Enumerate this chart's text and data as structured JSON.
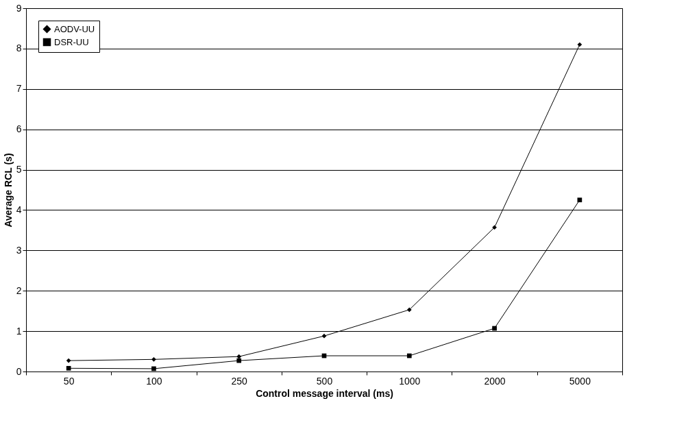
{
  "chart_data": {
    "type": "line",
    "xlabel": "Control message interval (ms)",
    "ylabel": "Average RCL (s)",
    "categories": [
      "50",
      "100",
      "250",
      "500",
      "1000",
      "2000",
      "5000"
    ],
    "series": [
      {
        "name": "AODV-UU",
        "color": "#000000",
        "marker": "diamond",
        "values": [
          0.27,
          0.3,
          0.37,
          0.88,
          1.53,
          3.57,
          8.1
        ]
      },
      {
        "name": "DSR-UU",
        "color": "#000000",
        "marker": "square",
        "values": [
          0.08,
          0.07,
          0.27,
          0.39,
          0.39,
          1.07,
          4.25
        ]
      }
    ],
    "ylim": [
      0,
      9
    ],
    "yticks": [
      0,
      1,
      2,
      3,
      4,
      5,
      6,
      7,
      8,
      9
    ],
    "grid": "y",
    "legend": "top left",
    "line_style": "solid"
  }
}
